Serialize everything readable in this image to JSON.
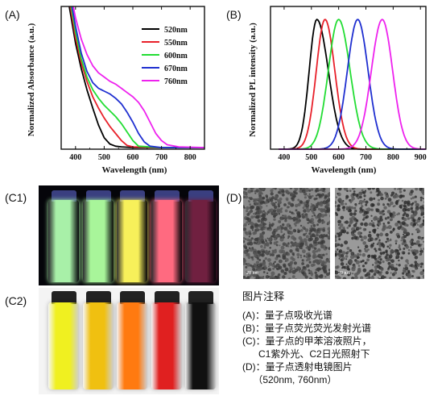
{
  "panels": {
    "a": "(A)",
    "b": "(B)",
    "c1": "(C1)",
    "c2": "(C2)",
    "d": "(D)"
  },
  "legend": [
    "520nm",
    "550nm",
    "600nm",
    "670nm",
    "760nm"
  ],
  "colors": {
    "520nm": "#000000",
    "550nm": "#e8202a",
    "600nm": "#22dd33",
    "670nm": "#1f2fd0",
    "760nm": "#ee22ee"
  },
  "chart_data": [
    {
      "type": "line",
      "panel": "(A)",
      "xlabel": "Wavelength (nm)",
      "ylabel": "Normalized Absorbance (a.u.)",
      "xlim": [
        350,
        850
      ],
      "ylim": [
        0,
        1
      ],
      "xticks": [
        400,
        500,
        600,
        700,
        800
      ],
      "yticks_shown": false,
      "legend_position": "top-right",
      "series": [
        {
          "name": "520nm",
          "x": [
            378,
            400,
            420,
            440,
            460,
            480,
            500,
            520,
            540,
            560,
            600,
            700,
            850
          ],
          "y": [
            1.0,
            0.74,
            0.56,
            0.41,
            0.28,
            0.16,
            0.07,
            0.025,
            0.01,
            0.005,
            0.0,
            0.0,
            0.0
          ]
        },
        {
          "name": "550nm",
          "x": [
            382,
            400,
            420,
            440,
            460,
            480,
            500,
            520,
            540,
            560,
            580,
            600,
            700,
            850
          ],
          "y": [
            1.0,
            0.78,
            0.6,
            0.47,
            0.36,
            0.28,
            0.21,
            0.15,
            0.1,
            0.05,
            0.015,
            0.005,
            0.0,
            0.0
          ]
        },
        {
          "name": "600nm",
          "x": [
            385,
            400,
            420,
            440,
            460,
            480,
            500,
            520,
            540,
            560,
            580,
            600,
            620,
            700,
            850
          ],
          "y": [
            1.0,
            0.82,
            0.63,
            0.5,
            0.41,
            0.35,
            0.3,
            0.26,
            0.22,
            0.17,
            0.11,
            0.05,
            0.01,
            0.0,
            0.0
          ]
        },
        {
          "name": "670nm",
          "x": [
            388,
            400,
            420,
            440,
            460,
            480,
            500,
            520,
            540,
            560,
            580,
            600,
            620,
            640,
            660,
            700,
            850
          ],
          "y": [
            1.0,
            0.86,
            0.67,
            0.54,
            0.46,
            0.42,
            0.4,
            0.38,
            0.35,
            0.31,
            0.25,
            0.18,
            0.1,
            0.04,
            0.01,
            0.0,
            0.0
          ]
        },
        {
          "name": "760nm",
          "x": [
            392,
            400,
            420,
            440,
            460,
            480,
            500,
            520,
            540,
            560,
            580,
            600,
            620,
            640,
            660,
            680,
            700,
            720,
            760,
            850
          ],
          "y": [
            1.0,
            0.92,
            0.77,
            0.66,
            0.58,
            0.53,
            0.5,
            0.47,
            0.45,
            0.42,
            0.39,
            0.36,
            0.32,
            0.26,
            0.18,
            0.1,
            0.05,
            0.02,
            0.005,
            0.0
          ]
        }
      ]
    },
    {
      "type": "line",
      "panel": "(B)",
      "xlabel": "Wavelength (nm)",
      "ylabel": "Normalized PL intensity (a.u.)",
      "xlim": [
        350,
        920
      ],
      "ylim": [
        0,
        1.1
      ],
      "xticks": [
        400,
        500,
        600,
        700,
        800,
        900
      ],
      "yticks_shown": false,
      "peaks": [
        {
          "name": "520nm",
          "center": 520,
          "sigma_left": 28,
          "sigma_right": 42
        },
        {
          "name": "550nm",
          "center": 550,
          "sigma_left": 32,
          "sigma_right": 36
        },
        {
          "name": "600nm",
          "center": 600,
          "sigma_left": 38,
          "sigma_right": 42
        },
        {
          "name": "670nm",
          "center": 670,
          "sigma_left": 38,
          "sigma_right": 38
        },
        {
          "name": "760nm",
          "center": 760,
          "sigma_left": 40,
          "sigma_right": 38
        }
      ]
    }
  ],
  "photos": {
    "c1_vial_colors": [
      "#a8f0a8",
      "#a8f59a",
      "#f7f05a",
      "#ff6a80",
      "#702040"
    ],
    "c2_vial_colors": [
      "#f0f020",
      "#f0c010",
      "#ff7a10",
      "#e02020",
      "#101010"
    ],
    "d_scale_left": "20 nm",
    "d_scale_right": "20 nm"
  },
  "notes": {
    "title": "图片注释",
    "lines": [
      "(A)：量子点吸收光谱",
      "(B)：量子点荧光荧光发射光谱",
      "(C)：量子点的甲苯溶液照片，",
      "      C1紫外光、C2日光照射下",
      "(D)：量子点透射电镜图片",
      "    （520nm, 760nm）"
    ]
  }
}
